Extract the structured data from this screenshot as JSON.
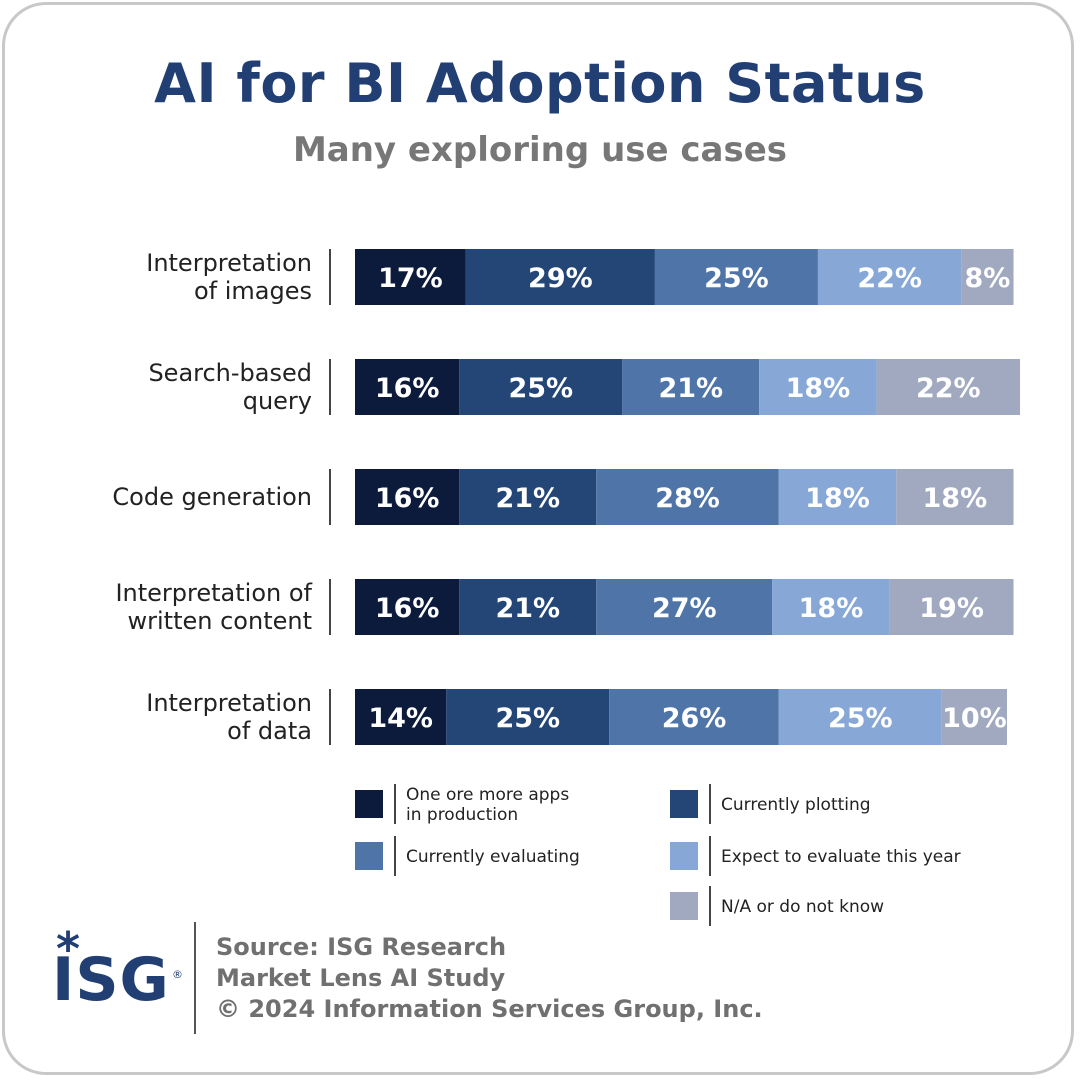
{
  "title": "AI for BI Adoption Status",
  "subtitle": "Many exploring use cases",
  "colors": {
    "title": "#223f74",
    "subtitle": "#777777",
    "series": [
      "#0c1a3c",
      "#234677",
      "#4e74a8",
      "#87a8d6",
      "#a0a9c0"
    ]
  },
  "chart_data": {
    "type": "bar",
    "orientation": "horizontal",
    "stacked": true,
    "categories": [
      [
        "Interpretation",
        "of images"
      ],
      [
        "Search-based",
        "query"
      ],
      [
        "Code generation"
      ],
      [
        "Interpretation of",
        "written content"
      ],
      [
        "Interpretation",
        "of data"
      ]
    ],
    "series": [
      {
        "name": "One ore more apps in production",
        "name_lines": [
          "One ore more apps",
          "in production"
        ],
        "values": [
          17,
          16,
          16,
          16,
          14
        ]
      },
      {
        "name": "Currently plotting",
        "name_lines": [
          "Currently plotting"
        ],
        "values": [
          29,
          25,
          21,
          21,
          25
        ]
      },
      {
        "name": "Currently evaluating",
        "name_lines": [
          "Currently evaluating"
        ],
        "values": [
          25,
          21,
          28,
          27,
          26
        ]
      },
      {
        "name": "Expect to evaluate this year",
        "name_lines": [
          "Expect to evaluate this year"
        ],
        "values": [
          22,
          18,
          18,
          18,
          25
        ]
      },
      {
        "name": "N/A or do not know",
        "name_lines": [
          "N/A or do not know"
        ],
        "values": [
          8,
          22,
          18,
          19,
          10
        ]
      }
    ],
    "value_suffix": "%",
    "legend_position": "bottom",
    "grid": false
  },
  "source": {
    "line1": "Source: ISG Research",
    "line2": "Market Lens AI Study",
    "line3": "© 2024 Information Services Group, Inc."
  },
  "logo": {
    "text": "ISG",
    "mark": "*",
    "registered": "®"
  }
}
